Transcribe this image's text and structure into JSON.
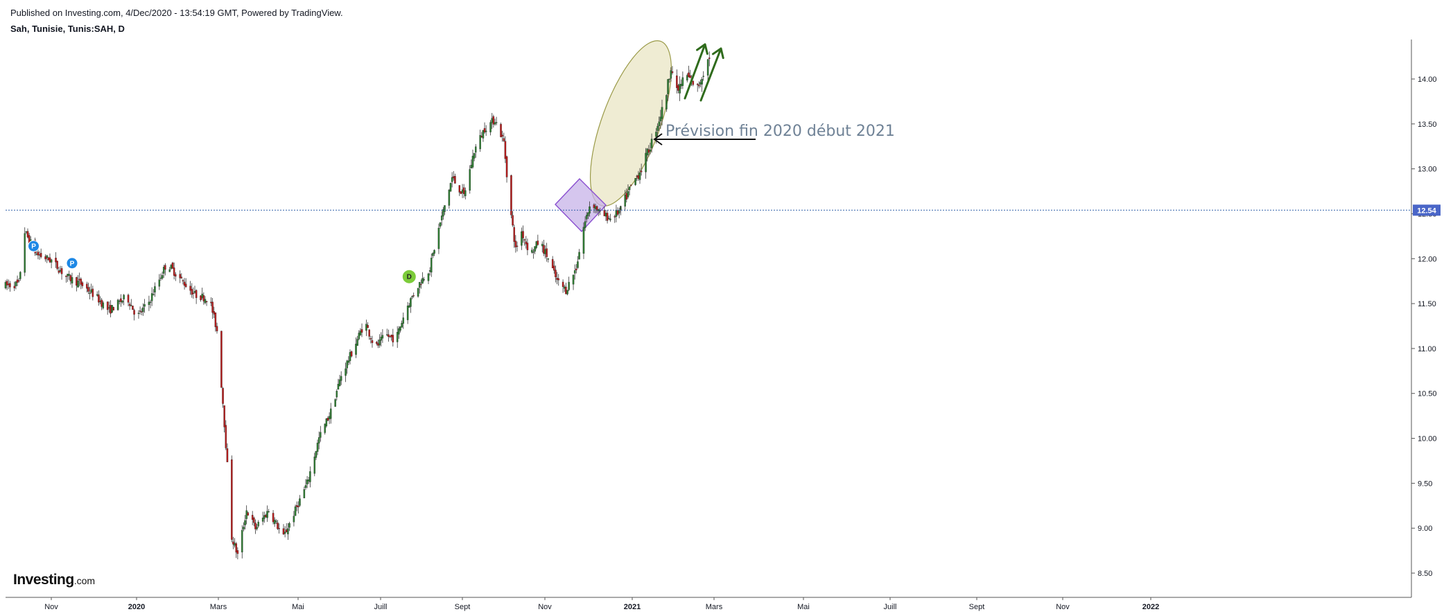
{
  "header": {
    "published": "Published on Investing.com, 4/Dec/2020 - 13:54:19 GMT, Powered by TradingView.",
    "symbol": "Sah, Tunisie, Tunis:SAH, D"
  },
  "logo": {
    "name": "Investing",
    "suffix": ".com"
  },
  "colors": {
    "up": "#2e7d32",
    "down": "#b71c1c",
    "forecast_up": "#c8c8c8",
    "price_line": "#2e5fa8",
    "price_tag": "#4a66c8",
    "ellipse_fill": "#e9e6c4",
    "ellipse_stroke": "#9a9a48",
    "diamond_fill": "#c7b3e8",
    "diamond_stroke": "#8a4fd0",
    "arrow_green": "#2f6b1c",
    "annotation": "#6f8296"
  },
  "chart_data": {
    "type": "candlestick",
    "title": "Sah, Tunisie, Tunis:SAH, D",
    "xlabel": "",
    "ylabel": "",
    "ylim": [
      8.3,
      14.45
    ],
    "yticks": [
      "8.50",
      "9.00",
      "9.50",
      "10.00",
      "10.50",
      "11.00",
      "11.50",
      "12.00",
      "12.50",
      "13.00",
      "13.50",
      "14.00"
    ],
    "xticks": [
      {
        "label": "Nov",
        "bold": false
      },
      {
        "label": "2020",
        "bold": true
      },
      {
        "label": "Mars",
        "bold": false
      },
      {
        "label": "Mai",
        "bold": false
      },
      {
        "label": "Juill",
        "bold": false
      },
      {
        "label": "Sept",
        "bold": false
      },
      {
        "label": "Nov",
        "bold": false
      },
      {
        "label": "2021",
        "bold": true
      },
      {
        "label": "Mars",
        "bold": false
      },
      {
        "label": "Mai",
        "bold": false
      },
      {
        "label": "Juill",
        "bold": false
      },
      {
        "label": "Sept",
        "bold": false
      },
      {
        "label": "Nov",
        "bold": false
      },
      {
        "label": "2022",
        "bold": true
      }
    ],
    "x_range": [
      "2019-10-15",
      "2022-05-20"
    ],
    "last_price": {
      "value": 12.54,
      "label": "12.54"
    },
    "annotation": "Prévision fin 2020 début 2021",
    "markers": [
      {
        "date": "2019-11-03",
        "price": 12.14,
        "label": "P",
        "kind": "split"
      },
      {
        "date": "2019-11-29",
        "price": 11.95,
        "label": "P",
        "kind": "split"
      },
      {
        "date": "2020-07-14",
        "price": 11.8,
        "label": "D",
        "kind": "dividend"
      }
    ],
    "price_path": [
      [
        "2019-10-15",
        11.7
      ],
      [
        "2019-10-24",
        11.72
      ],
      [
        "2019-10-28",
        12.3
      ],
      [
        "2019-11-05",
        12.05
      ],
      [
        "2019-11-15",
        11.98
      ],
      [
        "2019-11-25",
        11.8
      ],
      [
        "2019-12-05",
        11.72
      ],
      [
        "2019-12-15",
        11.58
      ],
      [
        "2019-12-24",
        11.42
      ],
      [
        "2020-01-05",
        11.58
      ],
      [
        "2020-01-12",
        11.35
      ],
      [
        "2020-01-20",
        11.52
      ],
      [
        "2020-02-01",
        11.95
      ],
      [
        "2020-02-10",
        11.78
      ],
      [
        "2020-02-20",
        11.6
      ],
      [
        "2020-03-01",
        11.55
      ],
      [
        "2020-03-06",
        11.2
      ],
      [
        "2020-03-10",
        10.4
      ],
      [
        "2020-03-13",
        9.7
      ],
      [
        "2020-03-16",
        8.9
      ],
      [
        "2020-03-20",
        8.7
      ],
      [
        "2020-03-26",
        9.2
      ],
      [
        "2020-04-01",
        9.0
      ],
      [
        "2020-04-10",
        9.2
      ],
      [
        "2020-04-20",
        8.9
      ],
      [
        "2020-04-28",
        9.2
      ],
      [
        "2020-05-06",
        9.5
      ],
      [
        "2020-05-14",
        10.0
      ],
      [
        "2020-05-22",
        10.3
      ],
      [
        "2020-05-29",
        10.7
      ],
      [
        "2020-06-05",
        10.95
      ],
      [
        "2020-06-14",
        11.3
      ],
      [
        "2020-06-21",
        11.0
      ],
      [
        "2020-06-28",
        11.15
      ],
      [
        "2020-07-05",
        11.1
      ],
      [
        "2020-07-12",
        11.45
      ],
      [
        "2020-07-20",
        11.7
      ],
      [
        "2020-07-28",
        11.9
      ],
      [
        "2020-08-04",
        12.4
      ],
      [
        "2020-08-12",
        12.9
      ],
      [
        "2020-08-20",
        12.7
      ],
      [
        "2020-08-27",
        13.2
      ],
      [
        "2020-09-03",
        13.45
      ],
      [
        "2020-09-10",
        13.55
      ],
      [
        "2020-09-16",
        13.3
      ],
      [
        "2020-09-20",
        12.6
      ],
      [
        "2020-09-24",
        12.1
      ],
      [
        "2020-09-28",
        12.3
      ],
      [
        "2020-10-04",
        12.05
      ],
      [
        "2020-10-10",
        12.2
      ],
      [
        "2020-10-16",
        12.0
      ],
      [
        "2020-10-22",
        11.75
      ],
      [
        "2020-10-28",
        11.65
      ],
      [
        "2020-11-04",
        11.9
      ],
      [
        "2020-11-09",
        12.35
      ],
      [
        "2020-11-14",
        12.65
      ],
      [
        "2020-11-20",
        12.5
      ],
      [
        "2020-11-27",
        12.45
      ],
      [
        "2020-12-04",
        12.54
      ]
    ],
    "forecast_path": [
      [
        "2020-12-04",
        12.55
      ],
      [
        "2020-12-11",
        12.8
      ],
      [
        "2020-12-18",
        13.0
      ],
      [
        "2020-12-25",
        13.3
      ],
      [
        "2020-12-30",
        13.55
      ],
      [
        "2021-01-03",
        13.75
      ],
      [
        "2021-01-07",
        14.15
      ],
      [
        "2021-01-11",
        13.85
      ],
      [
        "2021-01-17",
        14.05
      ],
      [
        "2021-01-25",
        13.9
      ],
      [
        "2021-02-02",
        14.25
      ]
    ]
  }
}
